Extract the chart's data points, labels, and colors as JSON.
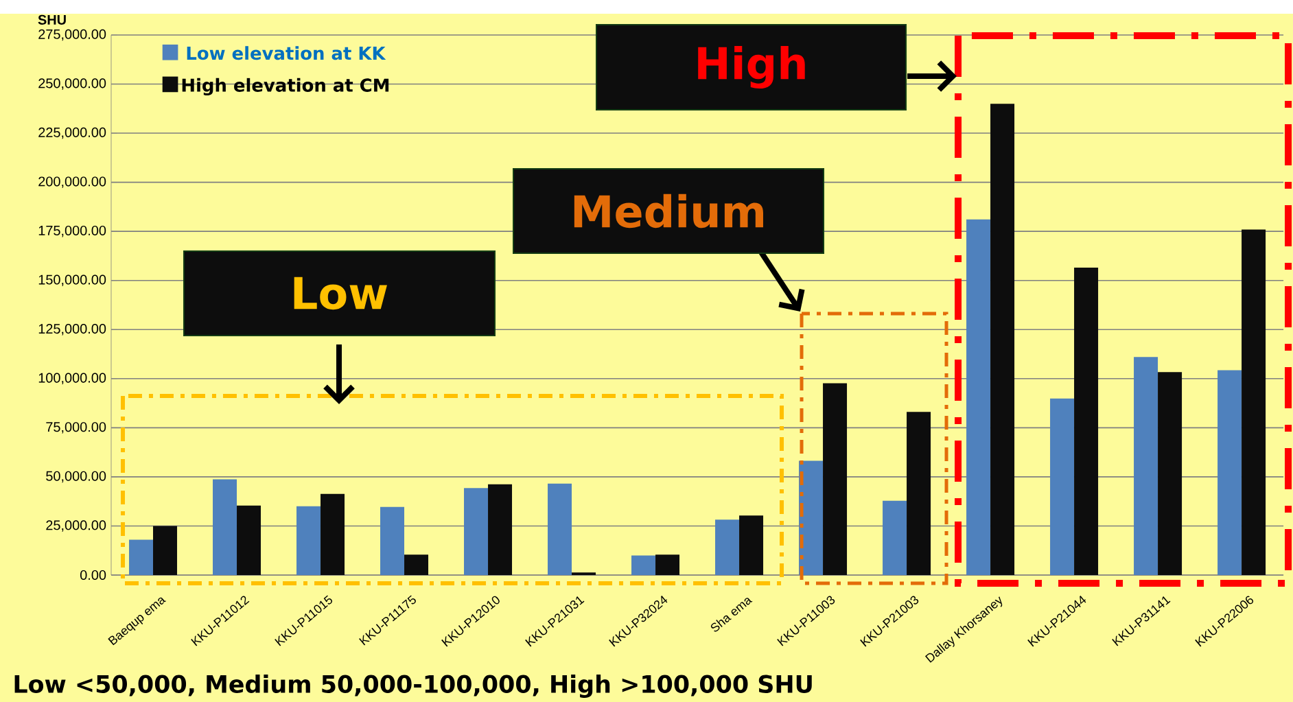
{
  "chart_data": {
    "type": "bar",
    "ylabel": "SHU",
    "categories": [
      "Baequp ema",
      "KKU-P11012",
      "KKU-P11015",
      "KKU-P11175",
      "KKU-P12010",
      "KKU-P21031",
      "KKU-P32024",
      "Sha ema",
      "KKU-P11003",
      "KKU-P21003",
      "Dallay Khorsaney",
      "KKU-P21044",
      "KKU-P31141",
      "KKU-P22006"
    ],
    "series": [
      {
        "name": "Low  elevation at KK",
        "color": "#4f81bd",
        "values": [
          18000,
          48700,
          35000,
          34700,
          44300,
          46600,
          10000,
          28200,
          58200,
          37800,
          181100,
          89900,
          111000,
          104300
        ]
      },
      {
        "name": "High elevation at CM",
        "color": "#0d0d0d",
        "values": [
          25000,
          35400,
          41300,
          10400,
          46200,
          1300,
          10400,
          30300,
          97700,
          83100,
          240000,
          156500,
          103300,
          175900
        ]
      }
    ],
    "ylim": [
      0,
      275000
    ],
    "yticks": [
      {
        "value": 0,
        "label": "0.00"
      },
      {
        "value": 25000,
        "label": "25,000.00"
      },
      {
        "value": 50000,
        "label": "50,000.00"
      },
      {
        "value": 75000,
        "label": "75,000.00"
      },
      {
        "value": 100000,
        "label": "100,000.00"
      },
      {
        "value": 125000,
        "label": "125,000.00"
      },
      {
        "value": 150000,
        "label": "150,000.00"
      },
      {
        "value": 175000,
        "label": "175,000.00"
      },
      {
        "value": 200000,
        "label": "200,000.00"
      },
      {
        "value": 225000,
        "label": "225,000.00"
      },
      {
        "value": 250000,
        "label": "250,000.00"
      },
      {
        "value": 275000,
        "label": "275,000.00"
      }
    ],
    "grid": "y",
    "legend": "top left",
    "annotations": [
      "Low",
      "Medium",
      "High",
      "Low <50,000, Medium 50,000-100,000, High >100,000 SHU"
    ]
  }
}
